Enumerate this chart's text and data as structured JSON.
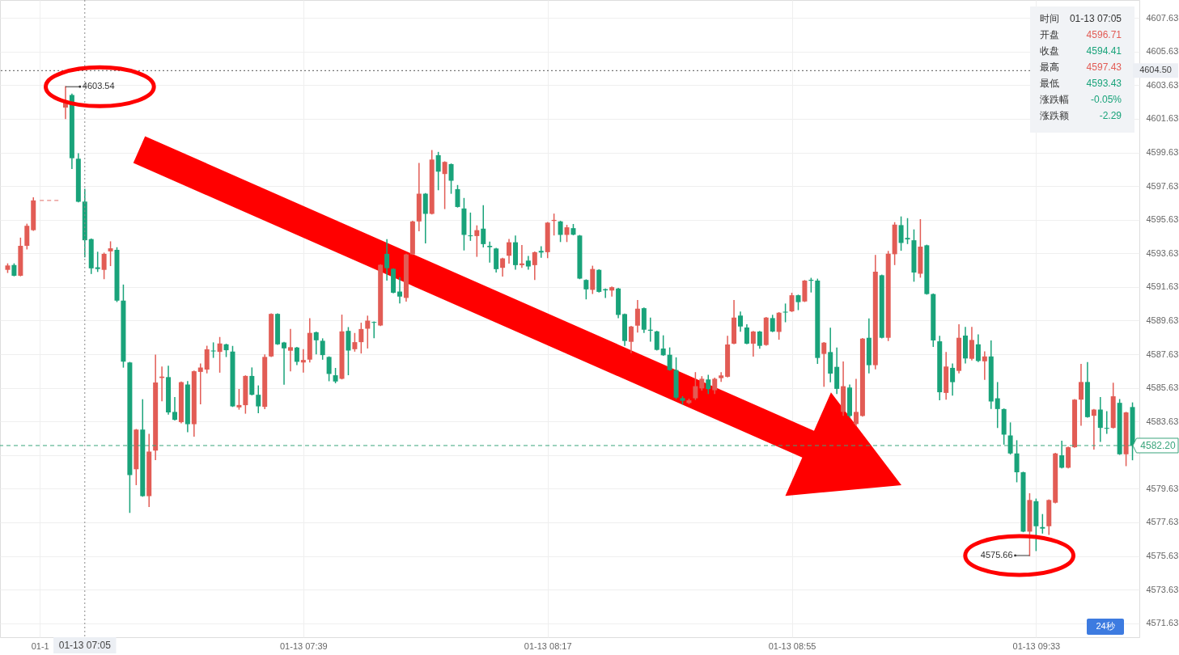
{
  "chart_data": {
    "type": "candlestick",
    "categories": [
      null,
      null,
      null,
      null,
      null,
      "01-1",
      null,
      null,
      null,
      null,
      null,
      null,
      "01-13 07:05",
      null,
      null,
      null,
      null,
      null,
      null,
      null,
      null,
      null,
      null,
      null,
      null,
      null,
      null,
      null,
      null,
      null,
      null,
      null,
      null,
      null,
      null,
      null,
      null,
      null,
      null,
      null,
      null,
      null,
      null,
      null,
      null,
      null,
      "01-13 07:39",
      null,
      null,
      null,
      null,
      null,
      null,
      null,
      null,
      null,
      null,
      null,
      null,
      null,
      null,
      null,
      null,
      null,
      null,
      null,
      null,
      null,
      null,
      null,
      null,
      null,
      null,
      null,
      null,
      null,
      null,
      null,
      null,
      null,
      null,
      null,
      null,
      null,
      "01-13 08:17",
      null,
      null,
      null,
      null,
      null,
      null,
      null,
      null,
      null,
      null,
      null,
      null,
      null,
      null,
      null,
      null,
      null,
      null,
      null,
      null,
      null,
      null,
      null,
      null,
      null,
      null,
      null,
      null,
      null,
      null,
      null,
      null,
      null,
      null,
      null,
      null,
      null,
      "01-13 08:55",
      null,
      null,
      null,
      null,
      null,
      null,
      null,
      null,
      null,
      null,
      null,
      null,
      null,
      null,
      null,
      null,
      null,
      null,
      null,
      null,
      null,
      null,
      null,
      null,
      null,
      null,
      null,
      null,
      null,
      null,
      null,
      null,
      null,
      null,
      null,
      null,
      null,
      "01-13 09:33",
      null,
      null,
      null,
      null,
      null,
      null,
      null,
      null,
      null,
      null,
      null,
      null,
      null,
      null,
      null
    ],
    "ohlc": [
      [
        4592.65,
        4593.0,
        4592.5,
        4592.91
      ],
      [
        4592.94,
        4593.0,
        4592.3,
        4592.3
      ],
      [
        4592.3,
        4594.53,
        4592.3,
        4594.08
      ],
      [
        4594.08,
        4595.36,
        4593.9,
        4595.27
      ],
      [
        4595.01,
        4596.93,
        4595.01,
        4596.78
      ],
      null,
      null,
      null,
      null,
      [
        4602.3,
        4603.54,
        4601.65,
        4602.7
      ],
      [
        4603.05,
        4603.1,
        4598.68,
        4599.29
      ],
      [
        4599.26,
        4599.55,
        4596.7,
        4596.7
      ],
      [
        4596.71,
        4597.43,
        4593.43,
        4594.41
      ],
      [
        4594.48,
        4594.48,
        4592.44,
        4592.74
      ],
      [
        4592.8,
        4593.69,
        4592.56,
        4592.7
      ],
      [
        4592.65,
        4593.64,
        4592.13,
        4593.6
      ],
      [
        4593.75,
        4594.31,
        4592.91,
        4593.93
      ],
      [
        4593.84,
        4593.96,
        4590.77,
        4590.82
      ],
      [
        4590.82,
        4591.74,
        4586.87,
        4587.19
      ],
      [
        4587.14,
        4587.14,
        4578.23,
        4580.44
      ],
      [
        4580.79,
        4583.15,
        4579.88,
        4583.15
      ],
      [
        4583.15,
        4584.92,
        4579.19,
        4579.19
      ],
      [
        4579.19,
        4582.86,
        4578.58,
        4581.84
      ],
      [
        4581.9,
        4587.57,
        4581.37,
        4585.95
      ],
      [
        4586.22,
        4586.87,
        4584.87,
        4586.3
      ],
      [
        4586.27,
        4586.91,
        4584.08,
        4584.17
      ],
      [
        4584.2,
        4585.05,
        4583.73,
        4583.73
      ],
      [
        4583.59,
        4585.97,
        4583.56,
        4585.97
      ],
      [
        4585.83,
        4586.0,
        4583.03,
        4583.47
      ],
      [
        4583.47,
        4586.62,
        4582.77,
        4586.62
      ],
      [
        4586.58,
        4587.05,
        4584.69,
        4586.84
      ],
      [
        4586.72,
        4588.1,
        4586.53,
        4587.92
      ],
      [
        4587.85,
        4588.3,
        4587.45,
        4587.8
      ],
      [
        4587.77,
        4588.62,
        4586.57,
        4588.27
      ],
      [
        4588.22,
        4588.22,
        4587.5,
        4587.87
      ],
      [
        4587.79,
        4588.09,
        4584.53,
        4584.53
      ],
      [
        4584.47,
        4585.53,
        4584.37,
        4584.61
      ],
      [
        4584.6,
        4586.34,
        4584.13,
        4586.34
      ],
      [
        4586.34,
        4586.81,
        4585.22,
        4585.22
      ],
      [
        4585.22,
        4585.74,
        4584.16,
        4584.53
      ],
      [
        4584.5,
        4587.58,
        4584.4,
        4587.47
      ],
      [
        4587.5,
        4590.03,
        4587.5,
        4590.03
      ],
      [
        4590.03,
        4590.03,
        4588.22,
        4588.22
      ],
      [
        4588.33,
        4588.33,
        4585.85,
        4587.98
      ],
      [
        4587.84,
        4589.1,
        4586.65,
        4588.05
      ],
      [
        4588.03,
        4588.03,
        4587.02,
        4587.18
      ],
      [
        4587.14,
        4587.9,
        4586.57,
        4587.29
      ],
      [
        4587.31,
        4589.74,
        4587.18,
        4588.9
      ],
      [
        4588.94,
        4588.94,
        4587.66,
        4588.46
      ],
      [
        4588.43,
        4588.54,
        4587.34,
        4587.58
      ],
      [
        4587.47,
        4587.47,
        4586.06,
        4586.46
      ],
      [
        4586.38,
        4586.78,
        4585.94,
        4586.01
      ],
      [
        4586.17,
        4589.95,
        4586.17,
        4588.99
      ],
      [
        4589.02,
        4589.21,
        4586.42,
        4587.85
      ],
      [
        4587.93,
        4588.86,
        4587.82,
        4588.35
      ],
      [
        4588.35,
        4589.47,
        4587.71,
        4589.13
      ],
      [
        4589.15,
        4589.89,
        4588.01,
        4589.63
      ],
      [
        4589.55,
        4589.55,
        4588.62,
        4589.5
      ],
      [
        4589.34,
        4592.95,
        4589.34,
        4592.95
      ],
      [
        4593.6,
        4594.44,
        4592.05,
        4592.75
      ],
      [
        4592.71,
        4592.71,
        4591.29,
        4591.29
      ],
      [
        4591.36,
        4592.18,
        4590.69,
        4591.06
      ],
      [
        4590.98,
        4593.57,
        4590.8,
        4593.57
      ],
      [
        4593.57,
        4595.53,
        4593.57,
        4595.53
      ],
      [
        4595.53,
        4598.97,
        4594.98,
        4597.18
      ],
      [
        4597.18,
        4597.18,
        4594.26,
        4595.98
      ],
      [
        4595.98,
        4599.74,
        4595.98,
        4599.21
      ],
      [
        4599.47,
        4599.63,
        4597.42,
        4598.49
      ],
      [
        4598.35,
        4599.07,
        4596.3,
        4599.07
      ],
      [
        4598.94,
        4598.94,
        4597.21,
        4597.95
      ],
      [
        4597.45,
        4597.66,
        4596.39,
        4596.39
      ],
      [
        4596.3,
        4596.89,
        4593.84,
        4594.73
      ],
      [
        4594.7,
        4596.02,
        4594.41,
        4594.65
      ],
      [
        4594.66,
        4595.26,
        4593.46,
        4595.01
      ],
      [
        4595.1,
        4596.46,
        4594.02,
        4594.18
      ],
      [
        4594.08,
        4594.29,
        4593.12,
        4594.0
      ],
      [
        4593.92,
        4593.92,
        4592.53,
        4592.69
      ],
      [
        4592.77,
        4593.33,
        4592.29,
        4593.33
      ],
      [
        4593.49,
        4594.45,
        4593.06,
        4594.29
      ],
      [
        4594.29,
        4594.66,
        4592.69,
        4592.93
      ],
      [
        4592.93,
        4594.09,
        4592.8,
        4593.03
      ],
      [
        4593.2,
        4593.44,
        4592.69,
        4592.85
      ],
      [
        4592.93,
        4593.7,
        4592.08,
        4593.7
      ],
      [
        4593.78,
        4594.02,
        4593.41,
        4593.68
      ],
      [
        4593.7,
        4595.46,
        4593.38,
        4595.46
      ],
      [
        4595.56,
        4595.96,
        4594.73,
        4595.62
      ],
      [
        4595.53,
        4595.53,
        4594.34,
        4594.73
      ],
      [
        4594.73,
        4595.29,
        4594.34,
        4595.18
      ],
      [
        4595.13,
        4595.34,
        4594.74,
        4594.74
      ],
      [
        4594.69,
        4594.69,
        4592.13,
        4592.13
      ],
      [
        4592.05,
        4592.05,
        4590.93,
        4591.49
      ],
      [
        4591.46,
        4592.86,
        4591.25,
        4592.7
      ],
      [
        4592.65,
        4592.65,
        4591.34,
        4591.34
      ],
      [
        4591.5,
        4591.5,
        4591.01,
        4591.43
      ],
      [
        4591.42,
        4591.62,
        4591.1,
        4591.62
      ],
      [
        4591.54,
        4591.54,
        4589.81,
        4589.97
      ],
      [
        4590.02,
        4590.02,
        4588.16,
        4588.42
      ],
      [
        4588.37,
        4589.28,
        4587.73,
        4589.28
      ],
      [
        4589.33,
        4590.82,
        4588.96,
        4590.34
      ],
      [
        4590.37,
        4590.37,
        4588.93,
        4589.09
      ],
      [
        4589.09,
        4589.78,
        4588.42,
        4589.03
      ],
      [
        4588.99,
        4588.99,
        4587.89,
        4587.89
      ],
      [
        4587.97,
        4588.72,
        4587.57,
        4587.57
      ],
      [
        4587.6,
        4588.0,
        4586.69,
        4586.69
      ],
      [
        4586.69,
        4587.41,
        4585.0,
        4585.05
      ],
      [
        4585.02,
        4585.1,
        4584.68,
        4584.86
      ],
      [
        4584.73,
        4584.95,
        4584.7,
        4584.89
      ],
      [
        4585.01,
        4586.53,
        4584.95,
        4585.73
      ],
      [
        4585.6,
        4586.29,
        4585.5,
        4586.17
      ],
      [
        4586.13,
        4586.37,
        4585.3,
        4585.56
      ],
      [
        4585.49,
        4586.2,
        4585.3,
        4586.17
      ],
      [
        4586.21,
        4586.53,
        4586.02,
        4586.37
      ],
      [
        4586.29,
        4588.69,
        4586.29,
        4588.21
      ],
      [
        4588.26,
        4590.82,
        4588.26,
        4589.81
      ],
      [
        4589.93,
        4590.13,
        4589.01,
        4589.28
      ],
      [
        4589.22,
        4589.38,
        4588.26,
        4588.26
      ],
      [
        4588.26,
        4588.98,
        4587.52,
        4588.98
      ],
      [
        4588.98,
        4588.98,
        4588.0,
        4588.13
      ],
      [
        4588.18,
        4589.81,
        4588.18,
        4589.81
      ],
      [
        4589.78,
        4589.94,
        4588.98,
        4588.98
      ],
      [
        4588.96,
        4590.1,
        4588.53,
        4590.1
      ],
      [
        4590.16,
        4590.61,
        4589.57,
        4590.11
      ],
      [
        4590.18,
        4591.25,
        4590.18,
        4591.14
      ],
      [
        4591.14,
        4591.14,
        4590.29,
        4590.73
      ],
      [
        4590.77,
        4592.01,
        4590.77,
        4592.01
      ],
      [
        4592.06,
        4592.14,
        4591.34,
        4592.0
      ],
      [
        4592.01,
        4592.09,
        4587.09,
        4587.41
      ],
      [
        4587.65,
        4588.32,
        4585.73,
        4588.32
      ],
      [
        4587.76,
        4589.17,
        4586.0,
        4586.48
      ],
      [
        4586.88,
        4588.0,
        4585.3,
        4585.57
      ],
      [
        4584.2,
        4587.17,
        4584.0,
        4585.73
      ],
      [
        4585.65,
        4585.8,
        4583.9,
        4583.96
      ],
      [
        4583.48,
        4586.13,
        4583.4,
        4584.2
      ],
      [
        4583.96,
        4588.56,
        4583.96,
        4588.56
      ],
      [
        4588.61,
        4589.73,
        4586.53,
        4586.98
      ],
      [
        4586.98,
        4593.5,
        4586.77,
        4592.54
      ],
      [
        4592.33,
        4592.33,
        4588.61,
        4588.61
      ],
      [
        4588.61,
        4593.74,
        4588.45,
        4593.61
      ],
      [
        4593.58,
        4595.45,
        4592.97,
        4595.34
      ],
      [
        4595.31,
        4595.79,
        4593.82,
        4594.25
      ],
      [
        4594.55,
        4595.69,
        4594.22,
        4594.46
      ],
      [
        4594.41,
        4595.02,
        4591.98,
        4592.49
      ],
      [
        4592.42,
        4595.63,
        4592.22,
        4594.03
      ],
      [
        4594.11,
        4594.11,
        4591.21,
        4591.21
      ],
      [
        4591.21,
        4591.21,
        4588.1,
        4588.45
      ],
      [
        4588.4,
        4588.69,
        4584.93,
        4585.37
      ],
      [
        4585.33,
        4587.73,
        4584.97,
        4586.9
      ],
      [
        4586.82,
        4587.04,
        4585.21,
        4585.97
      ],
      [
        4586.64,
        4589.38,
        4586.53,
        4588.61
      ],
      [
        4588.74,
        4589.22,
        4587.12,
        4587.38
      ],
      [
        4587.36,
        4589.22,
        4587.3,
        4588.48
      ],
      [
        4588.22,
        4588.78,
        4587.2,
        4587.23
      ],
      [
        4587.21,
        4587.77,
        4586.14,
        4587.5
      ],
      [
        4587.5,
        4588.41,
        4584.41,
        4584.82
      ],
      [
        4585.01,
        4585.94,
        4583.28,
        4584.37
      ],
      [
        4584.37,
        4584.37,
        4582.29,
        4582.85
      ],
      [
        4582.8,
        4583.54,
        4581.7,
        4581.73
      ],
      [
        4581.73,
        4582.48,
        4580.05,
        4580.61
      ],
      [
        4580.61,
        4580.61,
        4577.08,
        4577.08
      ],
      [
        4577.08,
        4579.33,
        4575.66,
        4578.96
      ],
      [
        4578.89,
        4579.01,
        4575.96,
        4577.4
      ],
      [
        4577.35,
        4578.09,
        4577.0,
        4577.26
      ],
      [
        4577.4,
        4578.96,
        4576.92,
        4578.96
      ],
      [
        4578.8,
        4581.73,
        4578.8,
        4581.73
      ],
      [
        4581.62,
        4582.45,
        4580.88,
        4580.88
      ],
      [
        4580.88,
        4582.1,
        4580.88,
        4582.1
      ],
      [
        4582.1,
        4584.93,
        4582.1,
        4584.93
      ],
      [
        4584.93,
        4587.02,
        4583.41,
        4585.98
      ],
      [
        4585.98,
        4587.13,
        4583.89,
        4583.89
      ],
      [
        4583.97,
        4584.34,
        4582.0,
        4584.34
      ],
      [
        4584.34,
        4585.05,
        4582.45,
        4583.25
      ],
      [
        4583.25,
        4584.21,
        4582.93,
        4583.2
      ],
      [
        4583.25,
        4585.9,
        4583.25,
        4585.13
      ],
      [
        4584.74,
        4584.93,
        4581.68,
        4581.68
      ],
      [
        4581.68,
        4584.17,
        4581.01,
        4584.17
      ],
      [
        4584.49,
        4584.73,
        4581.36,
        4582.2
      ]
    ],
    "colors": [
      "#e25c55",
      "#19a37a",
      "#e25c55",
      "#e25c55",
      "#e25c55",
      null,
      null,
      null,
      null,
      "#e25c55",
      "#19a37a",
      "#19a37a",
      "#19a37a",
      "#19a37a",
      "#19a37a",
      "#e25c55",
      "#e25c55",
      "#19a37a",
      "#19a37a",
      "#19a37a",
      "#e25c55",
      "#19a37a",
      "#e25c55",
      "#e25c55",
      "#e25c55",
      "#19a37a",
      "#19a37a",
      "#e25c55",
      "#19a37a",
      "#e25c55",
      "#e25c55",
      "#e25c55",
      "#19a37a",
      "#e25c55",
      "#19a37a",
      "#19a37a",
      "#e25c55",
      "#e25c55",
      "#19a37a",
      "#19a37a",
      "#e25c55",
      "#e25c55",
      "#19a37a",
      "#19a37a",
      "#e25c55",
      "#19a37a",
      "#e25c55",
      "#e25c55",
      "#19a37a",
      "#19a37a",
      "#19a37a",
      "#19a37a",
      "#e25c55",
      "#19a37a",
      "#e25c55",
      "#e25c55",
      "#e25c55",
      "#19a37a",
      "#e25c55",
      "#19a37a",
      "#19a37a",
      "#19a37a",
      "#e25c55",
      "#e25c55",
      "#e25c55",
      "#19a37a",
      "#e25c55",
      "#19a37a",
      "#e25c55",
      "#19a37a",
      "#19a37a",
      "#19a37a",
      "#19a37a",
      "#e25c55",
      "#19a37a",
      "#19a37a",
      "#19a37a",
      "#e25c55",
      "#e25c55",
      "#19a37a",
      "#e25c55",
      "#19a37a",
      "#e25c55",
      "#19a37a",
      "#e25c55",
      "#e25c55",
      "#19a37a",
      "#e25c55",
      "#19a37a",
      "#19a37a",
      "#19a37a",
      "#e25c55",
      "#19a37a",
      "#19a37a",
      "#e25c55",
      "#19a37a",
      "#19a37a",
      "#e25c55",
      "#e25c55",
      "#19a37a",
      "#19a37a",
      "#19a37a",
      "#19a37a",
      "#19a37a",
      "#19a37a",
      "#19a37a",
      "#e25c55",
      "#e25c55",
      "#e25c55",
      "#19a37a",
      "#e25c55",
      "#e25c55",
      "#e25c55",
      "#e25c55",
      "#19a37a",
      "#19a37a",
      "#e25c55",
      "#19a37a",
      "#e25c55",
      "#19a37a",
      "#e25c55",
      "#19a37a",
      "#e25c55",
      "#19a37a",
      "#e25c55",
      "#19a37a",
      "#19a37a",
      "#e25c55",
      "#19a37a",
      "#19a37a",
      "#e25c55",
      "#19a37a",
      "#e25c55",
      "#e25c55",
      "#19a37a",
      "#e25c55",
      "#19a37a",
      "#e25c55",
      "#e25c55",
      "#19a37a",
      "#19a37a",
      "#19a37a",
      "#e25c55",
      "#19a37a",
      "#19a37a",
      "#19a37a",
      "#e25c55",
      "#19a37a",
      "#e25c55",
      "#19a37a",
      "#e25c55",
      "#19a37a",
      "#e25c55",
      "#19a37a",
      "#19a37a",
      "#19a37a",
      "#19a37a",
      "#19a37a",
      "#19a37a",
      "#e25c55",
      "#19a37a",
      "#19a37a",
      "#e25c55",
      "#e25c55",
      "#19a37a",
      "#e25c55",
      "#e25c55",
      "#e25c55",
      "#19a37a",
      "#e25c55",
      "#19a37a",
      "#19a37a",
      "#e25c55",
      "#19a37a",
      "#e25c55",
      "#19a37a"
    ],
    "series": [
      {
        "type": "line",
        "color": "#e88a86",
        "line_style": "dashed",
        "values": [
          null,
          null,
          null,
          null,
          null,
          4596.78,
          4596.78,
          4596.78,
          4596.78,
          null,
          null,
          null,
          null,
          null,
          null,
          null,
          null,
          null,
          null,
          null,
          null,
          null,
          null,
          null,
          null,
          null,
          null,
          null,
          null,
          null,
          null,
          null,
          null,
          null,
          null,
          null,
          null,
          null,
          null,
          null,
          null,
          null,
          null,
          null,
          null,
          null,
          null,
          null,
          null,
          null,
          null,
          null,
          null,
          null,
          null,
          null,
          null,
          null,
          null,
          null,
          null,
          null,
          null,
          null,
          null,
          null,
          null,
          null,
          null,
          null,
          null,
          null,
          null,
          null,
          null,
          null,
          null,
          null,
          null,
          null,
          null,
          null,
          null,
          null,
          null,
          null,
          null,
          null,
          null,
          null,
          null,
          null,
          null,
          null,
          null,
          null,
          null,
          null,
          null,
          null,
          null,
          null,
          null,
          null,
          null,
          null,
          null,
          null,
          null,
          null,
          null,
          null,
          null,
          null,
          null,
          null,
          null,
          null,
          null,
          null,
          null,
          null,
          null,
          null,
          null,
          null,
          null,
          null,
          null,
          null,
          null,
          null,
          null,
          null,
          null,
          null,
          null,
          null,
          null,
          null,
          null,
          null,
          null,
          null,
          null,
          null,
          null,
          null,
          null,
          null,
          null,
          null,
          null,
          null,
          null,
          null,
          null,
          null,
          null,
          null,
          null,
          null,
          null,
          null,
          null,
          null,
          null,
          null,
          null,
          null,
          null,
          null,
          null,
          null,
          null,
          null
        ]
      }
    ],
    "ylim": [
      4570.8,
      4608.7
    ],
    "yticks": [
      4571.63,
      4573.63,
      4575.63,
      4577.63,
      4579.63,
      {
        "value": 4581.63,
        "label": null
      },
      4583.63,
      4585.63,
      4587.63,
      4589.63,
      4591.63,
      4593.63,
      4595.63,
      4597.63,
      4599.63,
      4601.63,
      4603.63,
      4605.63,
      4607.63
    ],
    "grid": true,
    "ref_lines": [
      {
        "axis": "x",
        "value": "01-13 07:05",
        "color": "#8a8a8a",
        "line_style": "dotted"
      },
      {
        "axis": "y",
        "value": 4604.5,
        "label": "4604.50",
        "color": "#555555",
        "line_style": "dotted"
      },
      {
        "axis": "y",
        "value": 4582.2,
        "label": "4582.20",
        "color": "#3aa57c",
        "line_style": "dashed"
      }
    ],
    "annotations": [
      "4603.54",
      "4575.66",
      "时间",
      "01-13 07:05",
      "开盘",
      "4596.71",
      "收盘",
      "4594.41",
      "最高",
      "4597.43",
      "最低",
      "4593.43",
      "涨跌幅",
      "-0.05%",
      "涨跌额",
      "-2.29",
      "24秒"
    ]
  }
}
